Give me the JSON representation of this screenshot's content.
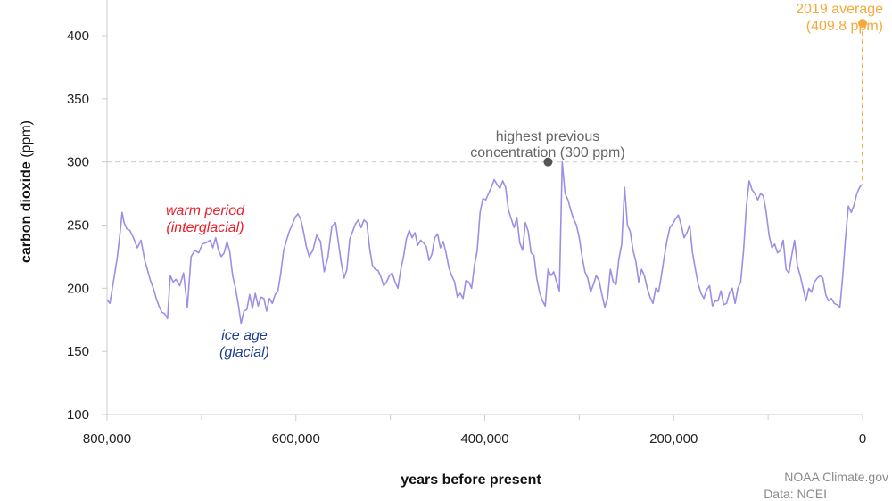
{
  "chart_data": {
    "type": "line",
    "title": "",
    "xlabel": "years before present",
    "ylabel": "carbon dioxide",
    "ylabel_unit": "(ppm)",
    "xlim": [
      800000,
      0
    ],
    "ylim": [
      100,
      420
    ],
    "x_ticks": [
      800000,
      600000,
      400000,
      200000,
      0
    ],
    "x_tick_labels": [
      "800,000",
      "600,000",
      "400,000",
      "200,000",
      "0"
    ],
    "x_minor_ticks": [
      700000,
      500000,
      300000,
      100000
    ],
    "y_ticks": [
      100,
      150,
      200,
      250,
      300,
      350,
      400
    ],
    "y_tick_labels": [
      "100",
      "150",
      "200",
      "250",
      "300",
      "350",
      "400"
    ],
    "grid": false,
    "colors": {
      "series": "#9b8fe6",
      "reference": "#cfcfcf",
      "highest_point": "#555555",
      "current": "#f5a93a",
      "warm": "#e8202a",
      "glacial": "#1f3f8f",
      "axis": "#cccccc"
    },
    "series": [
      {
        "name": "carbon dioxide (ppm)",
        "x": [
          800000,
          797000,
          794000,
          792000,
          789000,
          786000,
          784000,
          782000,
          779000,
          776000,
          772000,
          768000,
          764000,
          760000,
          757000,
          754000,
          751000,
          748000,
          745000,
          742000,
          739000,
          736000,
          733000,
          730000,
          727000,
          723000,
          719000,
          715000,
          711000,
          707000,
          703000,
          699000,
          695000,
          691000,
          688000,
          685000,
          682000,
          679000,
          676000,
          673000,
          670000,
          667000,
          664000,
          661000,
          658000,
          655000,
          652000,
          649000,
          646000,
          643000,
          640000,
          637000,
          634000,
          631000,
          628000,
          625000,
          622000,
          619000,
          616000,
          613000,
          610000,
          607000,
          604000,
          601000,
          598000,
          595000,
          592000,
          589000,
          586000,
          582000,
          578000,
          574000,
          570000,
          566000,
          562000,
          558000,
          555000,
          552000,
          549000,
          546000,
          543000,
          540000,
          537000,
          534000,
          531000,
          528000,
          525000,
          522000,
          519000,
          516000,
          513000,
          510000,
          507000,
          504000,
          501000,
          498000,
          495000,
          492000,
          489000,
          486000,
          483000,
          480000,
          477000,
          474000,
          471000,
          468000,
          465000,
          462000,
          459000,
          456000,
          453000,
          450000,
          447000,
          444000,
          441000,
          438000,
          435000,
          432000,
          429000,
          426000,
          423000,
          420000,
          417000,
          414000,
          411000,
          408000,
          405000,
          402000,
          399000,
          396000,
          393000,
          390000,
          387000,
          384000,
          381000,
          378000,
          375000,
          372000,
          369000,
          366000,
          363000,
          360000,
          357000,
          354000,
          351000,
          348000,
          345000,
          342000,
          339000,
          336000,
          333000,
          330000,
          327000,
          324000,
          321000,
          318000,
          315000,
          312000,
          309000,
          306000,
          303000,
          300000,
          297000,
          294000,
          291000,
          288000,
          285000,
          282000,
          279000,
          276000,
          273000,
          270000,
          267000,
          264000,
          261000,
          258000,
          255000,
          252000,
          249000,
          246000,
          243000,
          240000,
          237000,
          234000,
          231000,
          228000,
          225000,
          222000,
          219000,
          216000,
          213000,
          210000,
          207000,
          204000,
          201000,
          198000,
          195000,
          192000,
          189000,
          186000,
          183000,
          180000,
          177000,
          174000,
          171000,
          168000,
          165000,
          162000,
          159000,
          156000,
          153000,
          150000,
          147000,
          144000,
          141000,
          138000,
          135000,
          132000,
          129000,
          126000,
          123000,
          120000,
          117000,
          114000,
          111000,
          108000,
          105000,
          102000,
          99000,
          96000,
          93000,
          90000,
          87000,
          84000,
          81000,
          78000,
          75000,
          72000,
          69000,
          66000,
          63000,
          60000,
          57000,
          54000,
          51000,
          48000,
          45000,
          42000,
          39000,
          36000,
          33000,
          30000,
          27000,
          24000,
          21000,
          18000,
          15000,
          12000,
          9000,
          6000,
          3000,
          1000
        ],
        "y": [
          191,
          188,
          202,
          211,
          225,
          245,
          260,
          252,
          247,
          246,
          240,
          232,
          238,
          222,
          214,
          206,
          200,
          192,
          186,
          181,
          180,
          176,
          210,
          205,
          207,
          202,
          212,
          185,
          225,
          230,
          228,
          235,
          236,
          238,
          232,
          240,
          230,
          225,
          228,
          237,
          229,
          210,
          200,
          187,
          172,
          182,
          183,
          195,
          184,
          196,
          186,
          193,
          192,
          182,
          192,
          188,
          195,
          198,
          212,
          230,
          238,
          245,
          250,
          256,
          259,
          255,
          245,
          233,
          225,
          230,
          242,
          237,
          213,
          225,
          249,
          252,
          236,
          220,
          208,
          215,
          239,
          245,
          251,
          254,
          248,
          254,
          252,
          232,
          218,
          215,
          214,
          209,
          202,
          205,
          210,
          212,
          205,
          200,
          215,
          225,
          239,
          246,
          240,
          244,
          234,
          238,
          236,
          233,
          222,
          227,
          240,
          243,
          232,
          237,
          228,
          216,
          210,
          205,
          193,
          196,
          192,
          206,
          205,
          200,
          218,
          230,
          260,
          271,
          270,
          275,
          280,
          286,
          282,
          279,
          285,
          280,
          262,
          255,
          248,
          256,
          236,
          230,
          252,
          245,
          228,
          226,
          208,
          197,
          190,
          186,
          215,
          210,
          213,
          205,
          198,
          300,
          275,
          270,
          262,
          255,
          250,
          240,
          225,
          213,
          208,
          197,
          203,
          210,
          206,
          195,
          185,
          192,
          215,
          205,
          203,
          223,
          235,
          280,
          250,
          245,
          230,
          221,
          205,
          215,
          210,
          200,
          193,
          188,
          200,
          197,
          210,
          225,
          238,
          248,
          251,
          255,
          258,
          250,
          240,
          244,
          250,
          228,
          215,
          203,
          196,
          192,
          199,
          202,
          186,
          190,
          190,
          198,
          187,
          188,
          196,
          200,
          188,
          200,
          205,
          230,
          265,
          285,
          278,
          275,
          270,
          275,
          273,
          260,
          242,
          232,
          235,
          228,
          230,
          238,
          215,
          212,
          226,
          238,
          218,
          210,
          200,
          190,
          200,
          197,
          205,
          208,
          210,
          208,
          195,
          190,
          192,
          188,
          187,
          185,
          210,
          240,
          265,
          260,
          266,
          275,
          280,
          282
        ]
      }
    ],
    "reference_line": {
      "y": 300
    },
    "annotations": {
      "highest": {
        "x": 333000,
        "y": 300,
        "line1": "highest previous",
        "line2": "concentration (300 ppm)"
      },
      "current": {
        "x": 0,
        "y": 409.8,
        "line1": "2019 average",
        "line2": "(409.8 ppm)"
      },
      "warm": {
        "line1": "warm period",
        "line2": "(interglacial)"
      },
      "glacial": {
        "line1": "ice age",
        "line2": "(glacial)"
      }
    }
  },
  "credits": {
    "line1": "NOAA Climate.gov",
    "line2": "Data: NCEI"
  }
}
